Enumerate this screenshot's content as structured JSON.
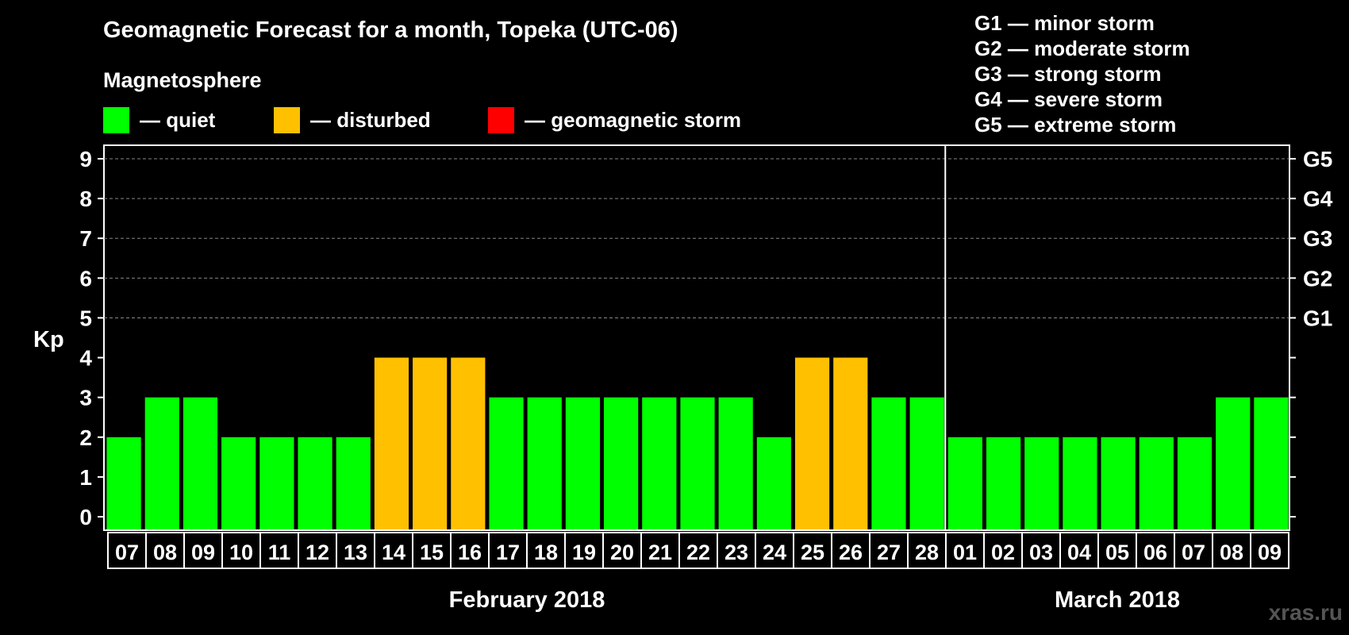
{
  "chart_data": {
    "type": "bar",
    "title": "Geomagnetic Forecast for a month, Topeka (UTC-06)",
    "ylabel": "Kp",
    "ylim": [
      0,
      9
    ],
    "yticks": [
      "0",
      "1",
      "2",
      "3",
      "4",
      "5",
      "6",
      "7",
      "8",
      "9"
    ],
    "right_axis_labels": [
      {
        "kp": 5,
        "label": "G1"
      },
      {
        "kp": 6,
        "label": "G2"
      },
      {
        "kp": 7,
        "label": "G3"
      },
      {
        "kp": 8,
        "label": "G4"
      },
      {
        "kp": 9,
        "label": "G5"
      }
    ],
    "categories": [
      "07",
      "08",
      "09",
      "10",
      "11",
      "12",
      "13",
      "14",
      "15",
      "16",
      "17",
      "18",
      "19",
      "20",
      "21",
      "22",
      "23",
      "24",
      "25",
      "26",
      "27",
      "28",
      "01",
      "02",
      "03",
      "04",
      "05",
      "06",
      "07",
      "08",
      "09"
    ],
    "values": [
      2,
      3,
      3,
      2,
      2,
      2,
      2,
      4,
      4,
      4,
      3,
      3,
      3,
      3,
      3,
      3,
      3,
      2,
      4,
      4,
      3,
      3,
      2,
      2,
      2,
      2,
      2,
      2,
      2,
      3,
      3
    ],
    "months": [
      {
        "label": "February 2018",
        "start_index": 0,
        "end_index": 21
      },
      {
        "label": "March 2018",
        "start_index": 22,
        "end_index": 30
      }
    ],
    "colors": {
      "quiet": "#00ff00",
      "disturbed": "#ffc000",
      "storm": "#ff0000"
    },
    "grid": true
  },
  "legend": {
    "heading": "Magnetosphere",
    "items": [
      {
        "label": "— quiet",
        "color": "#00ff00"
      },
      {
        "label": "— disturbed",
        "color": "#ffc000"
      },
      {
        "label": "— geomagnetic storm",
        "color": "#ff0000"
      }
    ]
  },
  "storm_scale": [
    "G1 — minor storm",
    "G2 — moderate storm",
    "G3 — strong storm",
    "G4 — severe storm",
    "G5 — extreme storm"
  ],
  "watermark": "xras.ru"
}
